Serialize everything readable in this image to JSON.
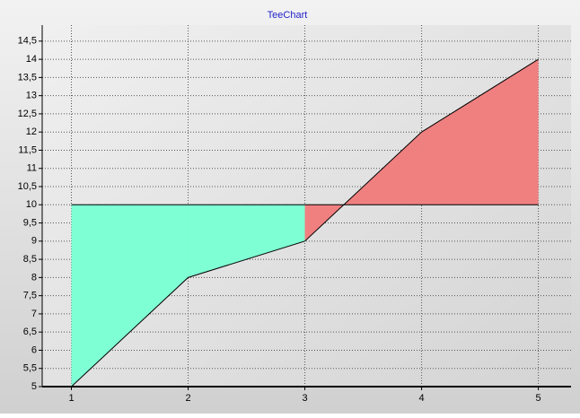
{
  "chart_data": {
    "type": "area",
    "title": "TeeChart",
    "x": [
      1,
      2,
      3,
      4,
      5
    ],
    "series": [
      {
        "values": [
          5,
          8,
          9,
          12,
          14
        ]
      }
    ],
    "origin": 10,
    "color_above": "#f08080",
    "color_below": "#7fffd4",
    "xlim": [
      0.75,
      5.28
    ],
    "xticks": [
      1,
      2,
      3,
      4,
      5
    ],
    "ylim": [
      5,
      14.94
    ],
    "yticks": [
      5,
      {
        "value": 5.5,
        "label": "5,5"
      },
      6,
      {
        "value": 6.5,
        "label": "6,5"
      },
      7,
      {
        "value": 7.5,
        "label": "7,5"
      },
      8,
      {
        "value": 8.5,
        "label": "8,5"
      },
      9,
      {
        "value": 9.5,
        "label": "9,5"
      },
      10,
      {
        "value": 10.5,
        "label": "10,5"
      },
      11,
      {
        "value": 11.5,
        "label": "11,5"
      },
      12,
      {
        "value": 12.5,
        "label": "12,5"
      },
      13,
      {
        "value": 13.5,
        "label": "13,5"
      },
      14,
      {
        "value": 14.5,
        "label": "14,5"
      }
    ],
    "grid": true
  }
}
